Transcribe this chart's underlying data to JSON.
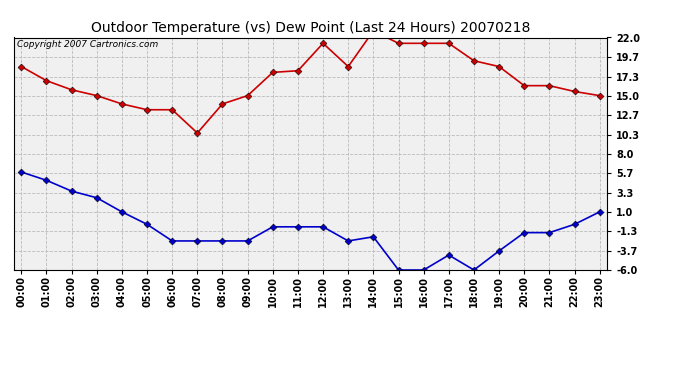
{
  "title": "Outdoor Temperature (vs) Dew Point (Last 24 Hours) 20070218",
  "copyright_text": "Copyright 2007 Cartronics.com",
  "hours": [
    0,
    1,
    2,
    3,
    4,
    5,
    6,
    7,
    8,
    9,
    10,
    11,
    12,
    13,
    14,
    15,
    16,
    17,
    18,
    19,
    20,
    21,
    22,
    23
  ],
  "temp_red": [
    18.5,
    16.8,
    15.7,
    15.0,
    14.0,
    13.3,
    13.3,
    10.5,
    14.0,
    15.0,
    17.8,
    18.0,
    21.3,
    18.5,
    22.8,
    21.3,
    21.3,
    21.3,
    19.2,
    18.5,
    16.2,
    16.2,
    15.5,
    15.0
  ],
  "dew_blue": [
    5.8,
    4.8,
    3.5,
    2.7,
    1.0,
    -0.5,
    -2.5,
    -2.5,
    -2.5,
    -2.5,
    -0.8,
    -0.8,
    -0.8,
    -2.5,
    -2.0,
    -6.0,
    -6.0,
    -4.2,
    -6.0,
    -3.7,
    -1.5,
    -1.5,
    -0.5,
    1.0
  ],
  "yticks": [
    22.0,
    19.7,
    17.3,
    15.0,
    12.7,
    10.3,
    8.0,
    5.7,
    3.3,
    1.0,
    -1.3,
    -3.7,
    -6.0
  ],
  "ymin": -6.0,
  "ymax": 22.0,
  "red_color": "#cc0000",
  "blue_color": "#0000cc",
  "bg_color": "#ffffff",
  "plot_bg_color": "#f0f0f0",
  "grid_color": "#bbbbbb",
  "title_fontsize": 10,
  "copyright_fontsize": 6.5,
  "tick_fontsize": 7,
  "marker": "D"
}
